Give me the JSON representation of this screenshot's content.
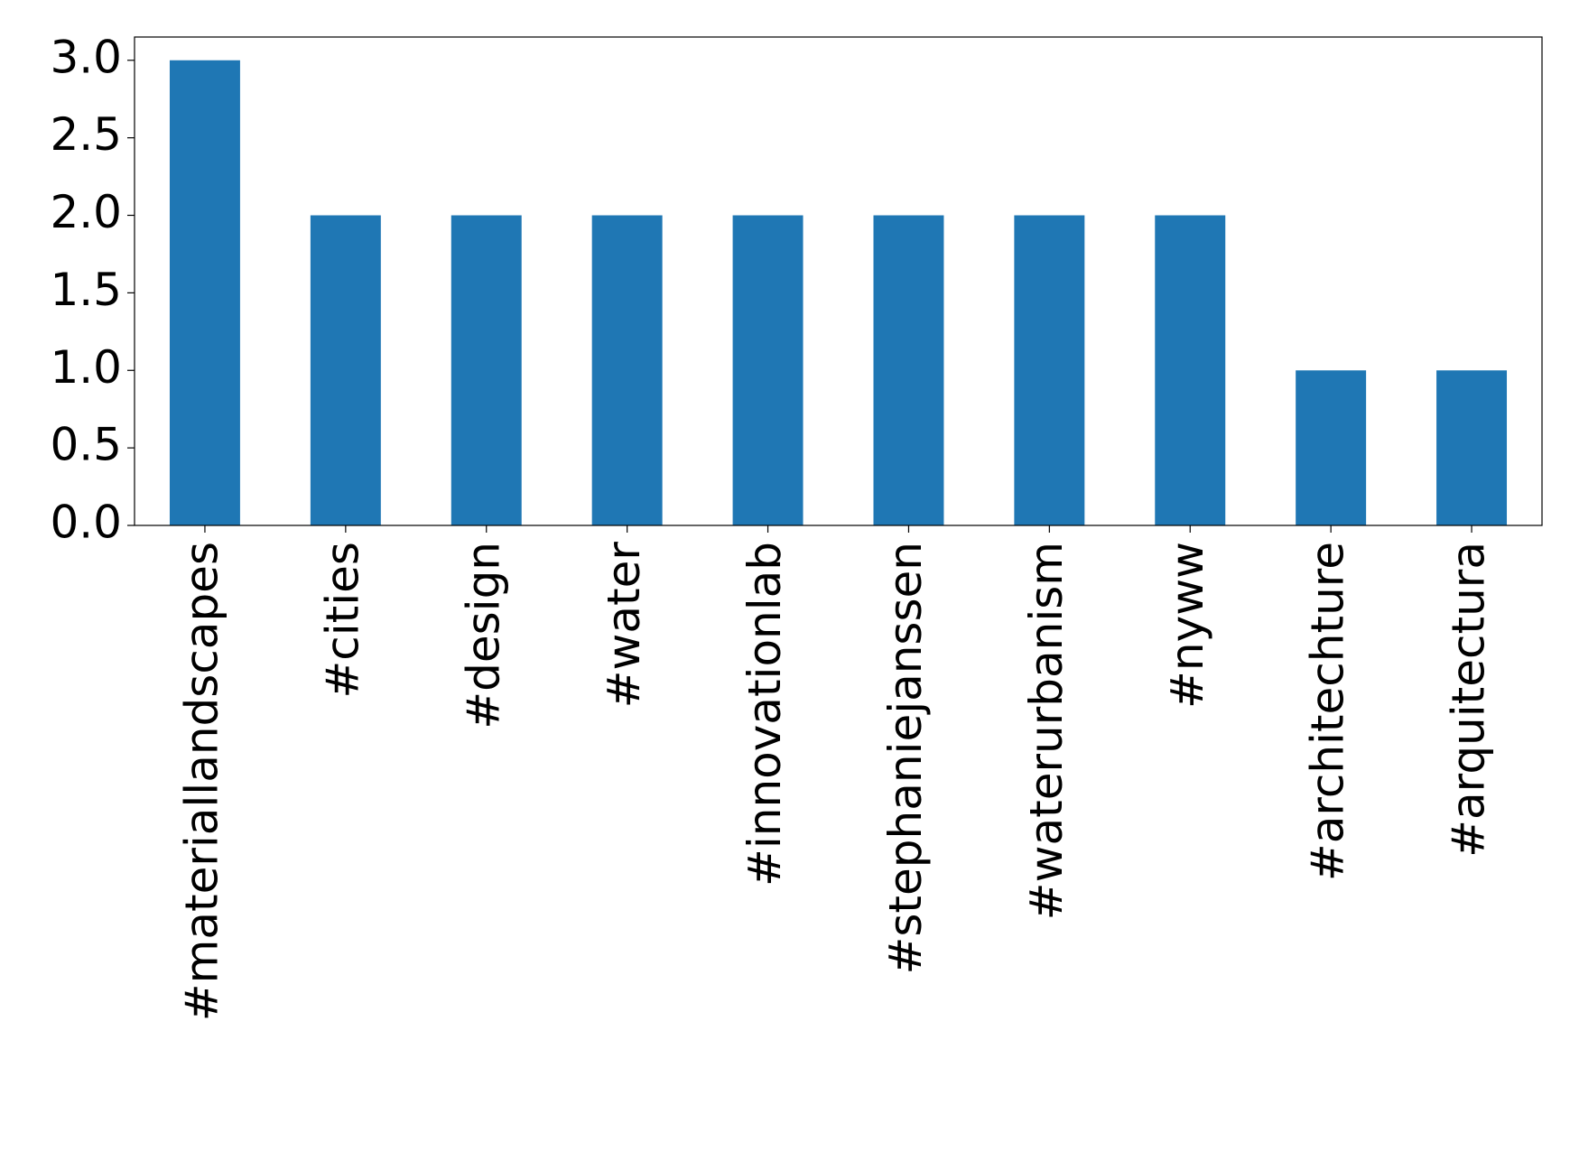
{
  "chart_data": {
    "type": "bar",
    "categories": [
      "#materiallandscapes",
      "#cities",
      "#design",
      "#water",
      "#innovationlab",
      "#stephaniejanssen",
      "#waterurbanism",
      "#nyww",
      "#architechture",
      "#arquitectura"
    ],
    "values": [
      3,
      2,
      2,
      2,
      2,
      2,
      2,
      2,
      1,
      1
    ],
    "color": "#1f77b4",
    "ylim": [
      0,
      3.15
    ],
    "yticks": [
      {
        "value": 0,
        "label": "0.0"
      },
      {
        "value": 0.5,
        "label": "0.5"
      },
      {
        "value": 1,
        "label": "1.0"
      },
      {
        "value": 1.5,
        "label": "1.5"
      },
      {
        "value": 2,
        "label": "2.0"
      },
      {
        "value": 2.5,
        "label": "2.5"
      },
      {
        "value": 3,
        "label": "3.0"
      }
    ],
    "grid": false
  }
}
